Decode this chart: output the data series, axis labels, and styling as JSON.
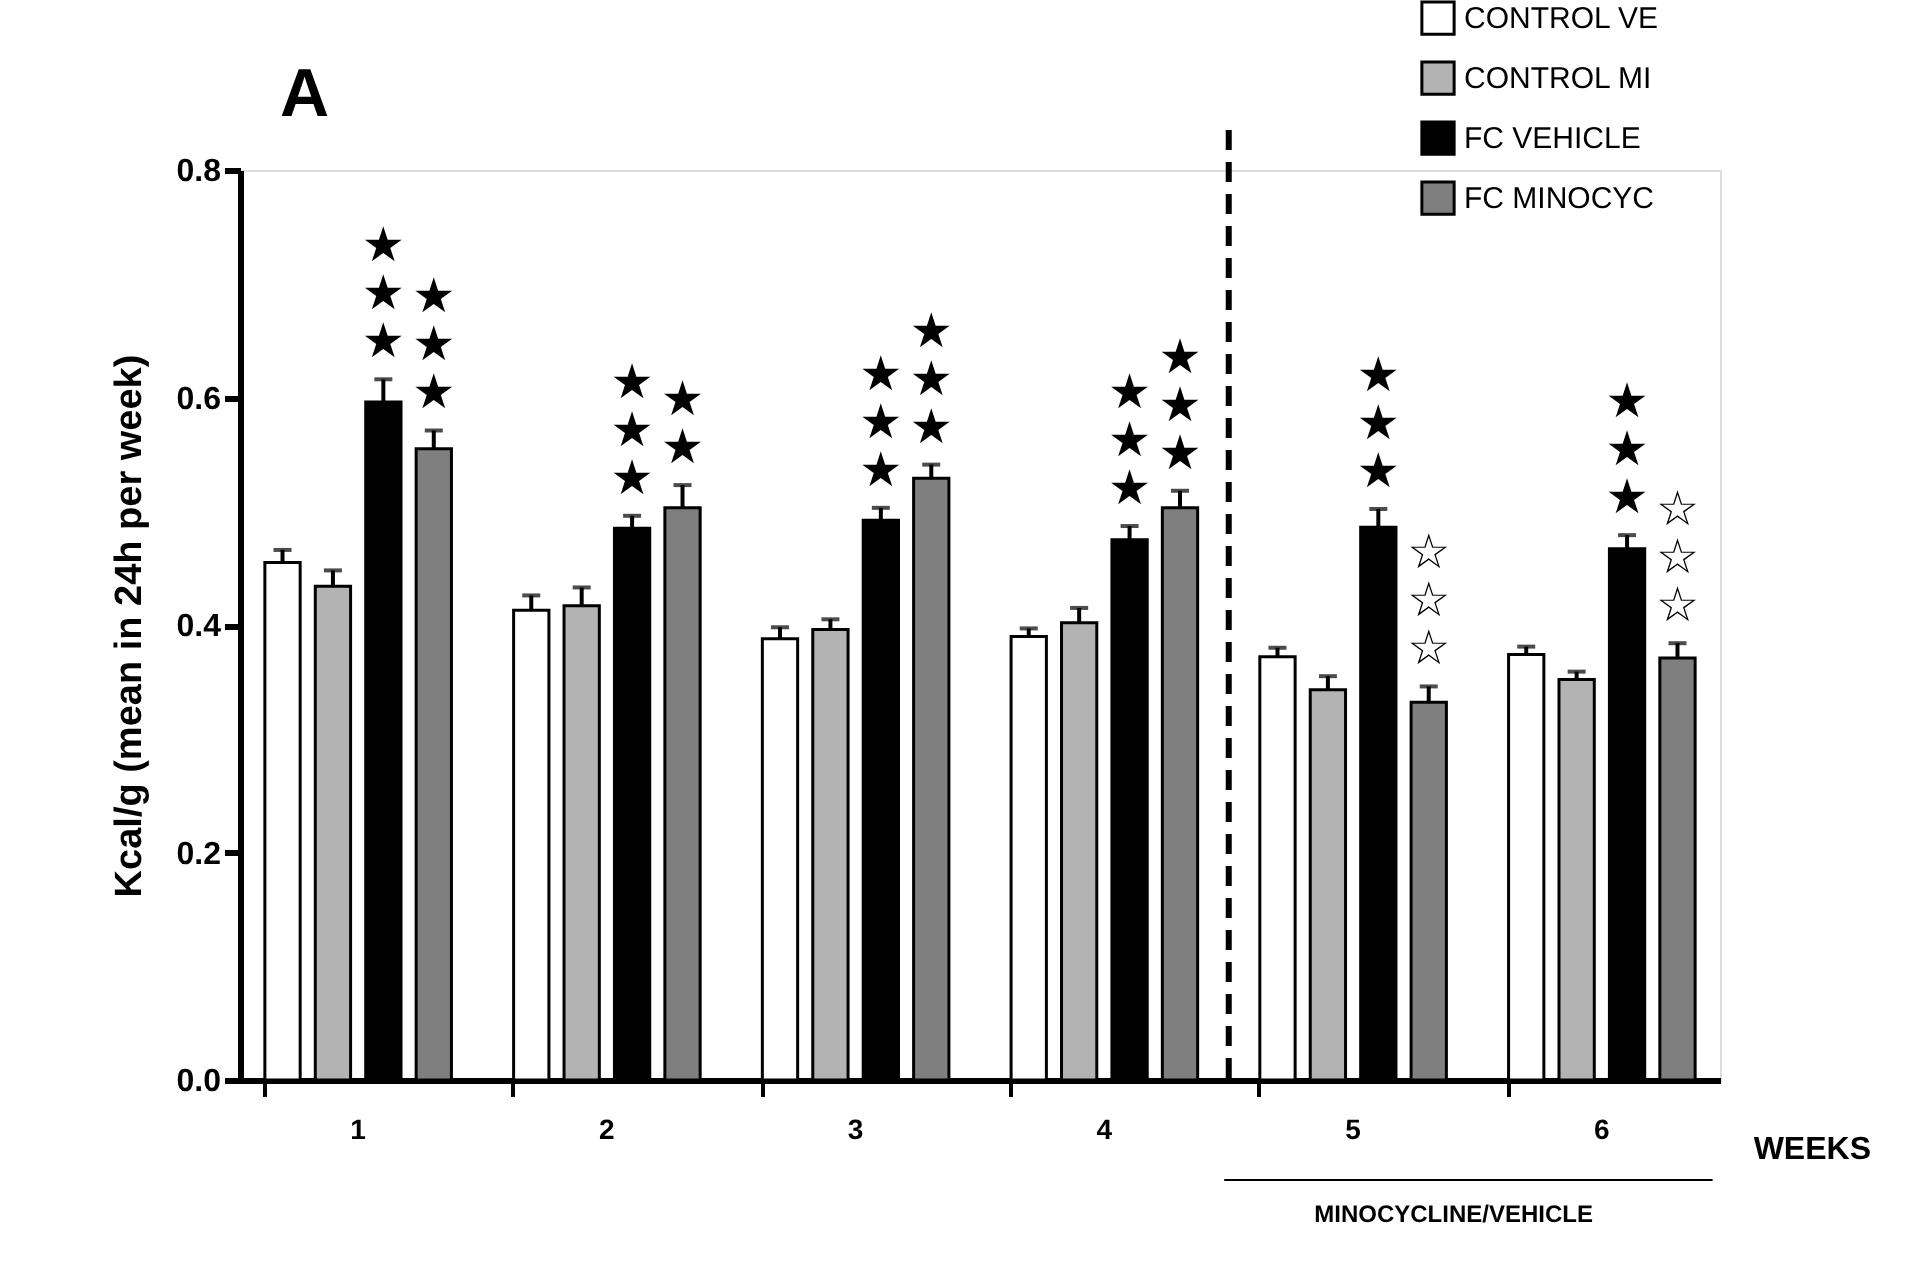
{
  "chart_data": {
    "type": "bar",
    "title": "A",
    "ylabel": "Kcal/g (mean in 24h per week)",
    "xlabel": "WEEKS",
    "categories": [
      "1",
      "2",
      "3",
      "4",
      "5",
      "6"
    ],
    "series": [
      {
        "name": "CONTROL VE",
        "color": "#ffffff",
        "values": [
          0.455,
          0.413,
          0.388,
          0.39,
          0.372,
          0.374
        ],
        "errors": [
          0.011,
          0.013,
          0.01,
          0.007,
          0.008,
          0.007
        ]
      },
      {
        "name": "CONTROL MI",
        "color": "#b3b3b3",
        "values": [
          0.434,
          0.417,
          0.396,
          0.402,
          0.343,
          0.352
        ],
        "errors": [
          0.014,
          0.016,
          0.009,
          0.013,
          0.012,
          0.007
        ]
      },
      {
        "name": "FC VEHICLE",
        "color": "#000000",
        "values": [
          0.596,
          0.485,
          0.492,
          0.475,
          0.486,
          0.467
        ],
        "errors": [
          0.02,
          0.011,
          0.011,
          0.012,
          0.016,
          0.012
        ]
      },
      {
        "name": "FC MINOCYC",
        "color": "#7f7f7f",
        "values": [
          0.555,
          0.503,
          0.529,
          0.503,
          0.332,
          0.371
        ],
        "errors": [
          0.016,
          0.02,
          0.012,
          0.015,
          0.014,
          0.013
        ]
      }
    ],
    "ylim": [
      0,
      0.8
    ],
    "yticks": [
      {
        "value": 0,
        "label": "0.0"
      },
      0.2,
      0.4,
      0.6,
      0.8
    ],
    "grid": false,
    "legend": "top right",
    "annotations": [
      "★\n★\n★",
      "★\n★\n★",
      "★\n★\n★",
      "★\n★",
      "★\n★\n★",
      "★\n★\n★",
      "★\n★\n★",
      "★\n★\n★",
      "★\n★\n★",
      "☆\n☆\n☆",
      "★\n★\n★",
      "☆\n☆\n☆",
      "MINOCYCLINE/VEHICLE"
    ]
  }
}
